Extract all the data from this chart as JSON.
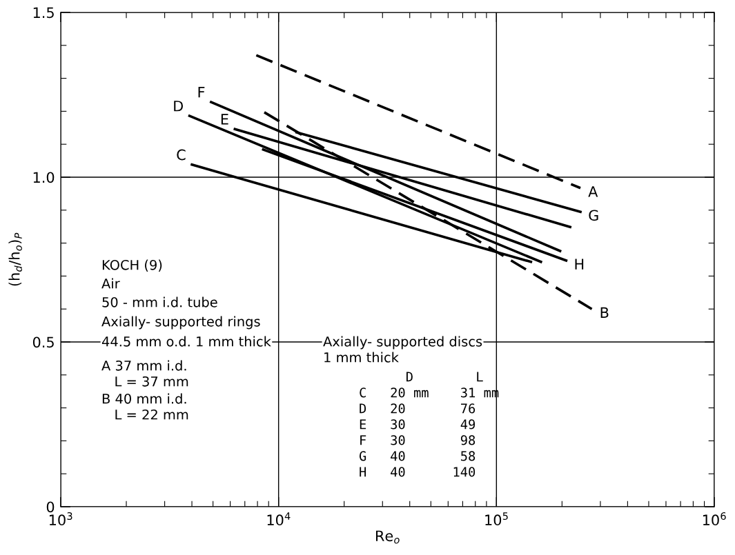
{
  "chart_data": {
    "type": "line",
    "xlabel": "Re$_{o}$",
    "ylabel": "(h$_{d}$/h$_{o}$)$_{P}$",
    "log": "x",
    "xlim": [
      1000,
      1000000
    ],
    "xticks": [
      {
        "value": 1000,
        "label": "10$^{3}$"
      },
      {
        "value": 10000,
        "label": "10$^{4}$"
      },
      {
        "value": 100000,
        "label": "10$^{5}$"
      },
      {
        "value": 1000000,
        "label": "10$^{6}$"
      }
    ],
    "ylim": [
      0,
      1.5
    ],
    "yticks": [
      0,
      0.5,
      {
        "value": 1.0,
        "label": "1.0"
      },
      1.5
    ],
    "grid": true,
    "legend": false,
    "marker": "none",
    "series": [
      {
        "name": "A",
        "color": "#000000",
        "line_style": "dashed",
        "x": [
          7900,
          243000
        ],
        "values": [
          1.37,
          0.967
        ]
      },
      {
        "name": "B",
        "color": "#000000",
        "line_style": "dashed",
        "x": [
          8600,
          274000
        ],
        "values": [
          1.197,
          0.6
        ]
      },
      {
        "name": "C",
        "color": "#000000",
        "line_style": "solid",
        "x": [
          144000,
          4000
        ],
        "values": [
          0.743,
          1.038
        ]
      },
      {
        "name": "D",
        "color": "#000000",
        "line_style": "solid",
        "x": [
          160000,
          3900
        ],
        "values": [
          0.743,
          1.186
        ]
      },
      {
        "name": "E",
        "color": "#000000",
        "line_style": "solid",
        "x": [
          218000,
          6300
        ],
        "values": [
          0.849,
          1.146
        ]
      },
      {
        "name": "F",
        "color": "#000000",
        "line_style": "solid",
        "x": [
          196000,
          4900
        ],
        "values": [
          0.776,
          1.228
        ]
      },
      {
        "name": "G",
        "color": "#000000",
        "line_style": "solid",
        "x": [
          12100,
          243000
        ],
        "values": [
          1.136,
          0.895
        ]
      },
      {
        "name": "H",
        "color": "#000000",
        "line_style": "solid",
        "x": [
          8500,
          209000
        ],
        "values": [
          1.084,
          0.747
        ]
      }
    ],
    "annotations": [
      "KOCH (9)",
      "Air",
      "50 - mm i.d. tube",
      "Axially- supported rings",
      "44.5 mm o.d. 1 mm thick",
      "A 37 mm i.d.",
      "   L = 37 mm",
      "B 40 mm i.d.",
      "   L = 22 mm",
      "Axially- supported discs",
      "1 mm thick",
      "      D        L",
      "C   20 mm    31 mm",
      "D   20       76",
      "E   30       49",
      "F   30       98",
      "G   40       58",
      "H   40      140"
    ]
  }
}
